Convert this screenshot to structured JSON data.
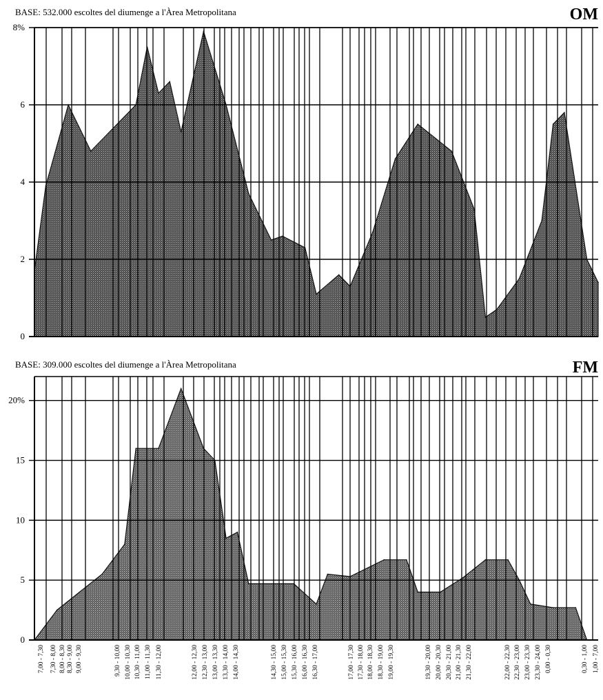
{
  "chart_data": [
    {
      "type": "area",
      "title": "BASE:  532.000 escoltes del diumenge a l'Àrea Metropolitana",
      "band_label": "OM",
      "ylim": [
        0,
        8
      ],
      "y_ticks": [
        "0",
        "2",
        "4",
        "6",
        "8%"
      ],
      "grid": true,
      "fill_color": "#555555",
      "points": [
        {
          "x": "07:00",
          "y": 1.7
        },
        {
          "x": "07:15",
          "y": 3.9
        },
        {
          "x": "07:45",
          "y": 6.0
        },
        {
          "x": "08:15",
          "y": 4.8
        },
        {
          "x": "09:15",
          "y": 6.0
        },
        {
          "x": "09:30",
          "y": 7.5
        },
        {
          "x": "09:45",
          "y": 6.3
        },
        {
          "x": "10:00",
          "y": 6.6
        },
        {
          "x": "10:15",
          "y": 5.3
        },
        {
          "x": "10:45",
          "y": 7.9
        },
        {
          "x": "11:15",
          "y": 6.0
        },
        {
          "x": "11:45",
          "y": 3.7
        },
        {
          "x": "12:15",
          "y": 2.5
        },
        {
          "x": "12:30",
          "y": 2.6
        },
        {
          "x": "13:00",
          "y": 2.3
        },
        {
          "x": "13:15",
          "y": 1.1
        },
        {
          "x": "13:45",
          "y": 1.6
        },
        {
          "x": "14:00",
          "y": 1.3
        },
        {
          "x": "14:30",
          "y": 2.7
        },
        {
          "x": "15:00",
          "y": 4.6
        },
        {
          "x": "15:30",
          "y": 5.5
        },
        {
          "x": "16:15",
          "y": 4.8
        },
        {
          "x": "16:45",
          "y": 3.3
        },
        {
          "x": "17:00",
          "y": 0.5
        },
        {
          "x": "17:15",
          "y": 0.7
        },
        {
          "x": "17:45",
          "y": 1.5
        },
        {
          "x": "18:15",
          "y": 3.0
        },
        {
          "x": "18:30",
          "y": 5.5
        },
        {
          "x": "18:45",
          "y": 5.8
        },
        {
          "x": "19:15",
          "y": 2.0
        },
        {
          "x": "19:30",
          "y": 1.4
        }
      ]
    },
    {
      "type": "area",
      "title": "BASE:  309.000 escoltes del diumenge a l'Àrea Metropolitana",
      "band_label": "FM",
      "ylim": [
        0,
        22
      ],
      "y_ticks": [
        "0",
        "5",
        "10",
        "15",
        "20%"
      ],
      "grid": true,
      "fill_color": "#6a6a6a",
      "points": [
        {
          "x": "07:00",
          "y": 0
        },
        {
          "x": "07:30",
          "y": 2.5
        },
        {
          "x": "08:00",
          "y": 4.0
        },
        {
          "x": "08:30",
          "y": 5.5
        },
        {
          "x": "09:00",
          "y": 8.0
        },
        {
          "x": "09:15",
          "y": 16.0
        },
        {
          "x": "09:45",
          "y": 16.0
        },
        {
          "x": "10:15",
          "y": 21.0
        },
        {
          "x": "10:45",
          "y": 16.0
        },
        {
          "x": "11:00",
          "y": 15.0
        },
        {
          "x": "11:15",
          "y": 8.5
        },
        {
          "x": "11:30",
          "y": 9.0
        },
        {
          "x": "11:45",
          "y": 4.7
        },
        {
          "x": "12:45",
          "y": 4.7
        },
        {
          "x": "13:15",
          "y": 3.0
        },
        {
          "x": "13:30",
          "y": 5.5
        },
        {
          "x": "14:00",
          "y": 5.3
        },
        {
          "x": "14:45",
          "y": 6.7
        },
        {
          "x": "15:15",
          "y": 6.7
        },
        {
          "x": "15:30",
          "y": 4.0
        },
        {
          "x": "16:00",
          "y": 4.0
        },
        {
          "x": "16:30",
          "y": 5.2
        },
        {
          "x": "17:00",
          "y": 6.7
        },
        {
          "x": "17:30",
          "y": 6.7
        },
        {
          "x": "17:45",
          "y": 5.0
        },
        {
          "x": "18:00",
          "y": 3.0
        },
        {
          "x": "18:30",
          "y": 2.7
        },
        {
          "x": "19:00",
          "y": 2.7
        },
        {
          "x": "19:15",
          "y": 0
        }
      ]
    }
  ],
  "x_tick_labels": [
    "7,00 - 7,30",
    "7,30 - 8,00",
    "8,00 - 8,30",
    "8,30 - 9,00",
    "9,00 - 9,30",
    "9,30 - 10,00",
    "10,00 - 10,30",
    "10,30 - 11,00",
    "11,00 - 11,30",
    "11,30 - 12,00",
    "12,00 - 12,30",
    "12,30 - 13,00",
    "13,00 - 13,30",
    "13,30 - 14,00",
    "14,00 - 14,30",
    "14,30 - 15,00",
    "15,00 - 15,30",
    "15,30 - 16,00",
    "16,00 - 16,30",
    "16,30 - 17,00",
    "17,00 - 17,30",
    "17,30 - 18,00",
    "18,00 - 18,30",
    "18,30 - 19,00",
    "19,00 - 19,30",
    "19,30 - 20,00",
    "20,00 - 20,30",
    "20,30 - 21,00",
    "21,00 - 21,30",
    "21,30 - 22,00",
    "22,00 - 22,30",
    "22,30 - 23,00",
    "23,00 - 23,30",
    "23,30 - 24,00",
    "0,00 - 0,30",
    "0,30 - 1,00",
    "1,00 - 7,00"
  ]
}
